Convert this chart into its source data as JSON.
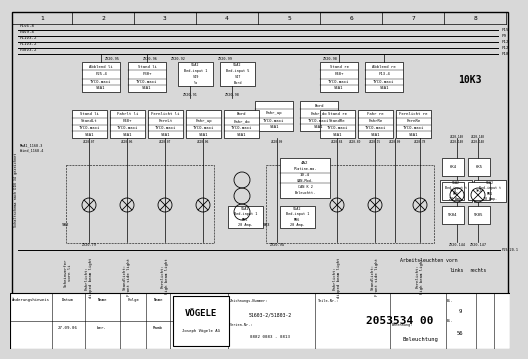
{
  "bg_color": "#d8d8d8",
  "line_color": "#000000",
  "doc_number": "2053534 00",
  "doc_name": "Beleuchtung",
  "company": "VÖGELE",
  "company_full": "Joseph Vögele AG",
  "drawing_number": "51603-2/51803-2",
  "serial_number": "0882 0083 - 0813",
  "date": "27.09.06",
  "name": "Ramb",
  "page": "9",
  "pages": "56",
  "component_10K3": "10K3",
  "wire_labels_left": [
    "F1v6.8",
    "F4v9.8",
    "F11v3.2",
    "F11v3.2",
    "F30v3.2"
  ],
  "wire_labels_right": [
    "F15",
    "F9",
    "F12",
    "F12",
    "F18"
  ],
  "note_left": "Schaltschema nach DIN 34 gezeichnet",
  "note2": "MoA1_1168.3",
  "note3": "Wind_1168.4",
  "bottom_wire_right": "F19/20.1"
}
